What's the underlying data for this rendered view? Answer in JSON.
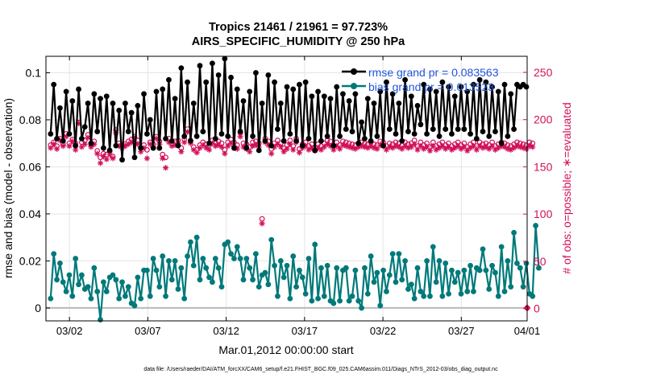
{
  "chart_data": {
    "type": "line",
    "title": "Tropics 21461 / 21961 = 97.723%",
    "subtitle": "AIRS_SPECIFIC_HUMIDITY @ 250 hPa",
    "xlabel": "Mar.01,2012 00:00:00 start",
    "ylabel": "rmse and bias (model - observation)",
    "ylabel_right": "# of obs: o=possible; ∗=evaluated",
    "footnote": "data file: /Users/raeder/DAI/ATM_forcXX/CAM6_setup/f.e21.FHIST_BGC.f09_025.CAM6assim.011/Diags_NTrS_2012-03/obs_diag_output.nc",
    "xlim": [
      0.5,
      31.2
    ],
    "ylim": [
      -0.0055,
      0.107
    ],
    "ylim_right": [
      -13,
      267
    ],
    "grid": true,
    "legend_location": "top-right",
    "x_ticks": [
      2,
      7,
      12,
      17,
      22,
      27,
      32
    ],
    "x_tick_labels": [
      "03/02",
      "03/07",
      "03/12",
      "03/17",
      "03/22",
      "03/27",
      "04/01"
    ],
    "y_ticks": [
      0,
      0.02,
      0.04,
      0.06,
      0.08,
      0.1
    ],
    "y_tick_labels": [
      "0",
      "0.02",
      "0.04",
      "0.06",
      "0.08",
      "0.1"
    ],
    "y_ticks_right": [
      0,
      50,
      100,
      150,
      200,
      250
    ],
    "y_tick_labels_right": [
      "0",
      "50",
      "100",
      "150",
      "200",
      "250"
    ],
    "colors": {
      "rmse": "#000000",
      "bias": "#00797a",
      "count": "#d1105a",
      "zero_line": "#b8b8b8",
      "legend_text": "#2255dd"
    },
    "series": [
      {
        "name": "rmse grand pr = 0.083563",
        "marker": "circle",
        "values": [
          0.074,
          0.095,
          0.072,
          0.085,
          0.071,
          0.092,
          0.074,
          0.088,
          0.069,
          0.093,
          0.072,
          0.077,
          0.087,
          0.07,
          0.091,
          0.075,
          0.089,
          0.068,
          0.09,
          0.067,
          0.087,
          0.069,
          0.084,
          0.063,
          0.087,
          0.075,
          0.083,
          0.064,
          0.086,
          0.068,
          0.091,
          0.074,
          0.08,
          0.068,
          0.092,
          0.068,
          0.093,
          0.072,
          0.097,
          0.071,
          0.089,
          0.069,
          0.102,
          0.073,
          0.096,
          0.071,
          0.087,
          0.073,
          0.103,
          0.075,
          0.096,
          0.07,
          0.104,
          0.072,
          0.099,
          0.074,
          0.106,
          0.073,
          0.098,
          0.068,
          0.093,
          0.075,
          0.088,
          0.068,
          0.092,
          0.073,
          0.1,
          0.067,
          0.087,
          0.071,
          0.099,
          0.069,
          0.096,
          0.076,
          0.087,
          0.071,
          0.094,
          0.074,
          0.093,
          0.071,
          0.095,
          0.069,
          0.096,
          0.072,
          0.09,
          0.067,
          0.092,
          0.071,
          0.09,
          0.073,
          0.089,
          0.069,
          0.094,
          0.073,
          0.091,
          0.076,
          0.088,
          0.075,
          0.091,
          0.07,
          0.079,
          0.072,
          0.089,
          0.071,
          0.087,
          0.073,
          0.092,
          0.069,
          0.096,
          0.076,
          0.091,
          0.074,
          0.087,
          0.071,
          0.097,
          0.075,
          0.09,
          0.074,
          0.086,
          0.078,
          0.095,
          0.074,
          0.093,
          0.076,
          0.092,
          0.073,
          0.096,
          0.076,
          0.094,
          0.074,
          0.09,
          0.076,
          0.094,
          0.076,
          0.092,
          0.074,
          0.095,
          0.072,
          0.097,
          0.075,
          0.096,
          0.073,
          0.094,
          0.075,
          0.092,
          0.07,
          0.095,
          0.073,
          0.091,
          0.076,
          0.095,
          0.094,
          0.095,
          0.094
        ]
      },
      {
        "name": "bias grand pr = 0.013523",
        "marker": "circle",
        "values": [
          0.004,
          0.023,
          0.012,
          0.019,
          0.011,
          0.007,
          0.014,
          0.005,
          0.021,
          0.01,
          0.014,
          0.008,
          0.009,
          0.004,
          0.017,
          0.007,
          -0.005,
          0.011,
          0.007,
          0.013,
          0.014,
          0.012,
          0.004,
          0.011,
          0.005,
          0.009,
          0.002,
          0.001,
          0.013,
          0.004,
          0.016,
          0.016,
          0.005,
          0.021,
          0.016,
          0.009,
          0.022,
          0.005,
          0.02,
          0.012,
          0.02,
          0.008,
          0.017,
          0.004,
          0.022,
          0.028,
          0.018,
          0.03,
          0.012,
          0.021,
          0.017,
          0.013,
          0.011,
          0.021,
          0.017,
          0.009,
          0.027,
          0.028,
          0.023,
          0.021,
          0.026,
          0.021,
          0.012,
          0.021,
          0.017,
          0.012,
          0.023,
          0.009,
          0.014,
          0.015,
          0.01,
          0.029,
          0.018,
          0.005,
          0.02,
          0.013,
          0.018,
          0.004,
          0.022,
          0.009,
          0.016,
          0.013,
          0.006,
          0.021,
          0.003,
          0.027,
          0.004,
          0.017,
          0.005,
          0.018,
          0.003,
          0.002,
          0.017,
          0.003,
          0.016,
          0.017,
          0.003,
          0.005,
          0.016,
          0.003,
          0.0,
          0.017,
          0.006,
          0.022,
          0.011,
          0.015,
          0.001,
          0.016,
          0.007,
          0.014,
          0.023,
          0.011,
          0.023,
          0.012,
          0.02,
          0.008,
          0.01,
          0.004,
          0.017,
          0.007,
          0.005,
          0.02,
          0.005,
          0.026,
          0.011,
          0.02,
          0.005,
          0.019,
          0.006,
          0.016,
          0.011,
          0.015,
          0.006,
          0.016,
          0.007,
          0.018,
          0.007,
          0.017,
          0.016,
          0.025,
          0.016,
          0.008,
          0.018,
          0.015,
          0.005,
          0.026,
          0.007,
          0.02,
          0.009,
          0.032,
          0.019,
          0.017,
          0.009,
          0.019,
          0.006,
          0.005,
          0.035,
          0.017
        ]
      }
    ],
    "count_series": [
      {
        "name": "possible",
        "marker": "circle-open",
        "values": [
          173,
          176,
          172,
          180,
          174,
          185,
          175,
          179,
          175,
          197,
          176,
          178,
          184,
          173,
          177,
          167,
          160,
          164,
          163,
          166,
          161,
          189,
          175,
          173,
          174,
          177,
          179,
          182,
          178,
          170,
          173,
          168,
          176,
          174,
          182,
          177,
          163,
          160,
          180,
          175,
          177,
          178,
          170,
          179,
          190,
          178,
          171,
          168,
          173,
          176,
          174,
          173,
          178,
          176,
          177,
          175,
          168,
          176,
          179,
          176,
          173,
          186,
          175,
          174,
          171,
          176,
          177,
          175,
          95,
          180,
          177,
          169,
          175,
          178,
          175,
          170,
          173,
          178,
          172,
          180,
          169,
          174,
          176,
          172,
          174,
          171,
          174,
          172,
          175,
          178,
          177,
          172,
          176,
          173,
          177,
          176,
          175,
          174,
          173,
          175,
          176,
          175,
          174,
          176,
          174,
          173,
          177,
          176,
          172,
          175,
          174,
          176,
          175,
          173,
          176,
          174,
          175,
          178,
          172,
          176,
          173,
          175,
          171,
          176,
          172,
          174,
          176,
          173,
          175,
          172,
          174,
          176,
          173,
          175,
          171,
          174,
          176,
          172,
          176,
          174,
          175,
          173,
          176,
          172,
          174,
          176,
          175,
          173,
          172,
          174,
          176,
          175,
          174,
          173,
          176,
          175
        ]
      },
      {
        "name": "evaluated",
        "marker": "asterisk",
        "values": [
          170,
          174,
          169,
          178,
          172,
          182,
          172,
          177,
          168,
          196,
          171,
          174,
          181,
          171,
          174,
          164,
          154,
          161,
          158,
          163,
          159,
          186,
          172,
          170,
          172,
          174,
          176,
          180,
          174,
          166,
          170,
          159,
          174,
          171,
          180,
          174,
          159,
          149,
          176,
          172,
          173,
          175,
          166,
          176,
          187,
          175,
          168,
          165,
          170,
          173,
          170,
          168,
          175,
          172,
          173,
          171,
          164,
          172,
          175,
          172,
          169,
          182,
          171,
          169,
          166,
          172,
          173,
          171,
          90,
          176,
          173,
          164,
          171,
          174,
          171,
          166,
          169,
          174,
          168,
          176,
          165,
          170,
          172,
          168,
          170,
          167,
          170,
          168,
          171,
          174,
          172,
          168,
          172,
          169,
          173,
          172,
          171,
          170,
          169,
          171,
          172,
          171,
          170,
          172,
          170,
          169,
          173,
          172,
          168,
          171,
          170,
          172,
          171,
          169,
          172,
          170,
          171,
          174,
          168,
          172,
          169,
          171,
          167,
          172,
          168,
          170,
          172,
          169,
          171,
          168,
          170,
          172,
          169,
          171,
          167,
          170,
          172,
          168,
          172,
          170,
          171,
          169,
          172,
          168,
          170,
          172,
          171,
          169,
          168,
          170,
          172,
          171,
          170,
          169,
          172,
          171
        ]
      }
    ]
  }
}
